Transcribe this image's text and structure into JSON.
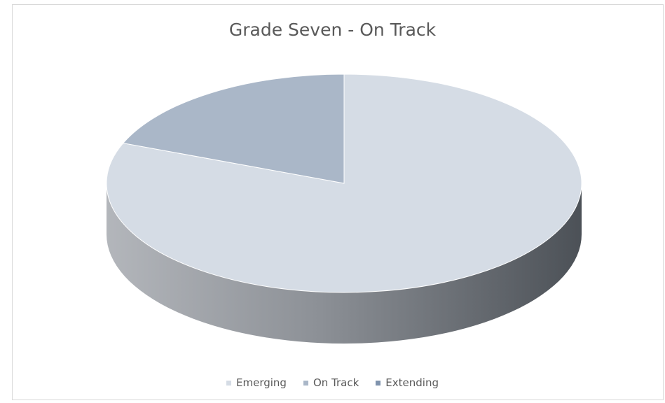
{
  "chart_data": {
    "type": "pie",
    "title": "Grade Seven - On Track",
    "categories": [
      "Emerging",
      "On Track",
      "Extending"
    ],
    "values": [
      81,
      19,
      0
    ],
    "colors": [
      "#d5dce5",
      "#aab7c8",
      "#7f93ad"
    ],
    "legend_position": "bottom",
    "three_d": true
  },
  "legend": [
    {
      "label": "Emerging",
      "color": "#d5dce5"
    },
    {
      "label": "On Track",
      "color": "#aab7c8"
    },
    {
      "label": "Extending",
      "color": "#7f93ad"
    }
  ]
}
